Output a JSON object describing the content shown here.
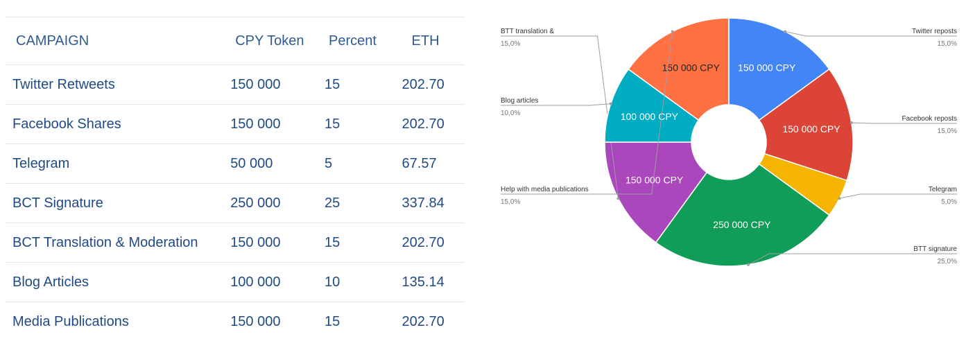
{
  "table": {
    "headers": [
      "CAMPAIGN",
      "CPY Token",
      "Percent",
      "ETH"
    ],
    "rows": [
      [
        "Twitter Retweets",
        "150 000",
        "15",
        "202.70"
      ],
      [
        "Facebook Shares",
        "150 000",
        "15",
        "202.70"
      ],
      [
        "Telegram",
        "50 000",
        "5",
        "67.57"
      ],
      [
        "BCT Signature",
        "250 000",
        "25",
        "337.84"
      ],
      [
        "BCT Translation & Moderation",
        "150 000",
        "15",
        "202.70"
      ],
      [
        "Blog Articles",
        "100 000",
        "10",
        "135.14"
      ],
      [
        "Media Publications",
        "150 000",
        "15",
        "202.70"
      ]
    ]
  },
  "chart_data": {
    "type": "pie",
    "donut": true,
    "title": "",
    "legend": "callout labels outside slices",
    "slices": [
      {
        "name": "Twitter reposts",
        "value": 15.0,
        "pct_label": "15,0%",
        "slice_label": "150 000 CPY",
        "color": "#4285f4",
        "text_color": "#ffffff",
        "side": "right"
      },
      {
        "name": "Facebook reposts",
        "value": 15.0,
        "pct_label": "15,0%",
        "slice_label": "150 000 CPY",
        "color": "#db4437",
        "text_color": "#ffffff",
        "side": "right"
      },
      {
        "name": "Telegram",
        "value": 5.0,
        "pct_label": "5,0%",
        "slice_label": "",
        "color": "#f4b400",
        "text_color": "#ffffff",
        "side": "right"
      },
      {
        "name": "BTT signature",
        "value": 25.0,
        "pct_label": "25,0%",
        "slice_label": "250 000 CPY",
        "color": "#0f9d58",
        "text_color": "#ffffff",
        "side": "right"
      },
      {
        "name": "BTT translation &",
        "value": 15.0,
        "pct_label": "15,0%",
        "slice_label": "150 000 CPY",
        "color": "#ab47bc",
        "text_color": "#ffffff",
        "side": "left"
      },
      {
        "name": "Blog articles",
        "value": 10.0,
        "pct_label": "10,0%",
        "slice_label": "100 000 CPY",
        "color": "#00acc1",
        "text_color": "#ffffff",
        "side": "left"
      },
      {
        "name": "Help with media publications",
        "value": 15.0,
        "pct_label": "15,0%",
        "slice_label": "150 000 CPY",
        "color": "#ff7043",
        "text_color": "#222222",
        "side": "left"
      }
    ]
  }
}
